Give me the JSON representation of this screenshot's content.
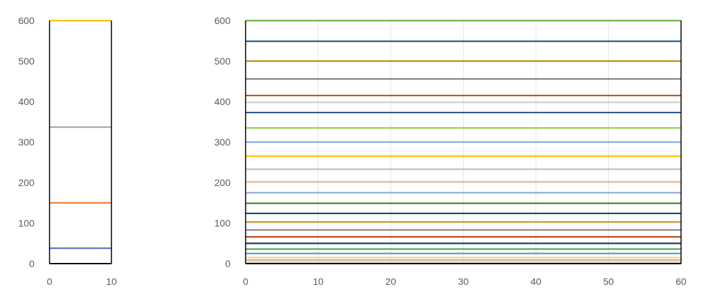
{
  "chart_data": [
    {
      "type": "line",
      "title": "",
      "xlabel": "",
      "ylabel": "",
      "xlim": [
        0,
        10
      ],
      "ylim": [
        0,
        600
      ],
      "x_ticks": [
        0,
        10
      ],
      "y_ticks": [
        0,
        100,
        200,
        300,
        400,
        500,
        600
      ],
      "grid": false,
      "legend": "none",
      "series": [
        {
          "color": "#ffc000",
          "x": [
            0,
            10
          ],
          "values": [
            600,
            600
          ]
        },
        {
          "color": "#a5a5a5",
          "x": [
            0,
            10
          ],
          "values": [
            337,
            337
          ]
        },
        {
          "color": "#ed7d31",
          "x": [
            0,
            10
          ],
          "values": [
            150,
            150
          ]
        },
        {
          "color": "#4472c4",
          "x": [
            0,
            10
          ],
          "values": [
            38,
            38
          ]
        }
      ]
    },
    {
      "type": "line",
      "title": "",
      "xlabel": "",
      "ylabel": "",
      "xlim": [
        0,
        60
      ],
      "ylim": [
        0,
        600
      ],
      "x_ticks": [
        0,
        10,
        20,
        30,
        40,
        50,
        60
      ],
      "y_ticks": [
        0,
        100,
        200,
        300,
        400,
        500,
        600
      ],
      "grid": true,
      "legend": "none",
      "series": [
        {
          "color": "#70ad47",
          "x": [
            0,
            60
          ],
          "values": [
            600,
            600
          ]
        },
        {
          "color": "#255e91",
          "x": [
            0,
            60
          ],
          "values": [
            549,
            549
          ]
        },
        {
          "color": "#bf9000",
          "x": [
            0,
            60
          ],
          "values": [
            500,
            500
          ]
        },
        {
          "color": "#7f7f7f",
          "x": [
            0,
            60
          ],
          "values": [
            456,
            456
          ]
        },
        {
          "color": "#c55a11",
          "x": [
            0,
            60
          ],
          "values": [
            415,
            415
          ]
        },
        {
          "color": "#d0d0d0",
          "x": [
            0,
            60
          ],
          "values": [
            398,
            398
          ]
        },
        {
          "color": "#2f5597",
          "x": [
            0,
            60
          ],
          "values": [
            373,
            373
          ]
        },
        {
          "color": "#92d050",
          "x": [
            0,
            60
          ],
          "values": [
            335,
            335
          ]
        },
        {
          "color": "#7fb1dc",
          "x": [
            0,
            60
          ],
          "values": [
            300,
            300
          ]
        },
        {
          "color": "#ffc000",
          "x": [
            0,
            60
          ],
          "values": [
            265,
            265
          ]
        },
        {
          "color": "#bfbfbf",
          "x": [
            0,
            60
          ],
          "values": [
            233,
            233
          ]
        },
        {
          "color": "#f4b183",
          "x": [
            0,
            60
          ],
          "values": [
            202,
            202
          ]
        },
        {
          "color": "#8faadc",
          "x": [
            0,
            60
          ],
          "values": [
            175,
            175
          ]
        },
        {
          "color": "#548235",
          "x": [
            0,
            60
          ],
          "values": [
            149,
            149
          ]
        },
        {
          "color": "#1f4e79",
          "x": [
            0,
            60
          ],
          "values": [
            124,
            124
          ]
        },
        {
          "color": "#c9a227",
          "x": [
            0,
            60
          ],
          "values": [
            103,
            103
          ]
        },
        {
          "color": "#8c8c8c",
          "x": [
            0,
            60
          ],
          "values": [
            83,
            83
          ]
        },
        {
          "color": "#c0400f",
          "x": [
            0,
            60
          ],
          "values": [
            66,
            66
          ]
        },
        {
          "color": "#203864",
          "x": [
            0,
            60
          ],
          "values": [
            50,
            50
          ]
        },
        {
          "color": "#4caf50",
          "x": [
            0,
            60
          ],
          "values": [
            36,
            36
          ]
        },
        {
          "color": "#5b9bd5",
          "x": [
            0,
            60
          ],
          "values": [
            25,
            25
          ]
        },
        {
          "color": "#ffd966",
          "x": [
            0,
            60
          ],
          "values": [
            15,
            15
          ]
        },
        {
          "color": "#b4b4b4",
          "x": [
            0,
            60
          ],
          "values": [
            9,
            9
          ]
        },
        {
          "color": "#f8cbad",
          "x": [
            0,
            60
          ],
          "values": [
            4,
            4
          ]
        }
      ]
    }
  ]
}
